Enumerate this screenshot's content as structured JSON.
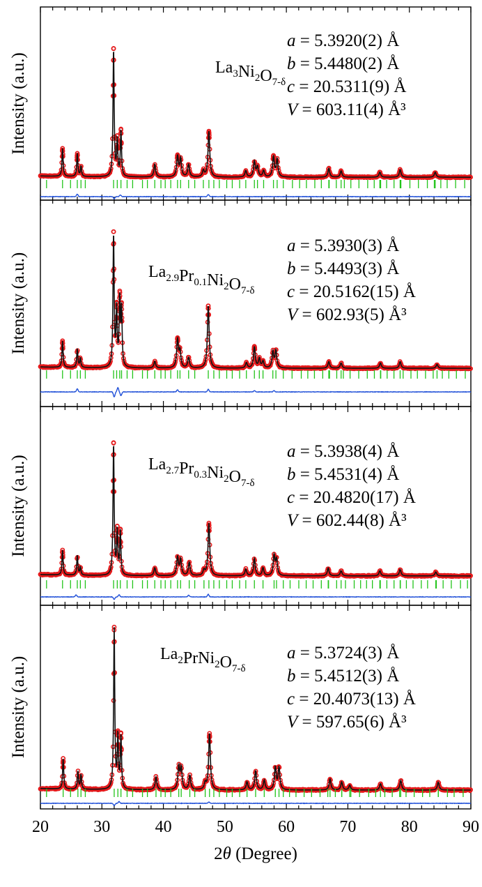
{
  "chart_data": [
    {
      "type": "line",
      "compound": {
        "parts": [
          {
            "t": "La",
            "sub": false
          },
          {
            "t": "3",
            "sub": true
          },
          {
            "t": "Ni",
            "sub": false
          },
          {
            "t": "2",
            "sub": true
          },
          {
            "t": "O",
            "sub": false
          },
          {
            "t": "7-δ",
            "sub": true
          }
        ]
      },
      "ylabel": "Intensity (a.u.)",
      "lattice": [
        {
          "name": "a",
          "value": " = 5.3920(2) Å"
        },
        {
          "name": "b",
          "value": " = 5.4480(2) Å"
        },
        {
          "name": "c",
          "value": " = 20.5311(9) Å"
        },
        {
          "name": "V",
          "value": " = 603.11(4) Å³"
        }
      ],
      "peaks": [
        [
          23.6,
          0.22
        ],
        [
          26.0,
          0.18
        ],
        [
          26.6,
          0.08
        ],
        [
          31.9,
          1.0
        ],
        [
          32.5,
          0.28
        ],
        [
          33.1,
          0.36
        ],
        [
          38.6,
          0.1
        ],
        [
          42.3,
          0.16
        ],
        [
          42.8,
          0.14
        ],
        [
          44.1,
          0.1
        ],
        [
          46.5,
          0.05
        ],
        [
          47.4,
          0.36
        ],
        [
          53.4,
          0.05
        ],
        [
          54.8,
          0.12
        ],
        [
          55.3,
          0.08
        ],
        [
          56.3,
          0.05
        ],
        [
          57.9,
          0.16
        ],
        [
          58.5,
          0.14
        ],
        [
          66.9,
          0.07
        ],
        [
          68.9,
          0.05
        ],
        [
          75.2,
          0.04
        ],
        [
          78.5,
          0.06
        ],
        [
          84.2,
          0.04
        ]
      ],
      "diff_features": [
        [
          26.0,
          0.6
        ],
        [
          32.0,
          -0.5
        ],
        [
          33.0,
          0.4
        ],
        [
          47.3,
          0.5
        ]
      ]
    },
    {
      "type": "line",
      "compound": {
        "parts": [
          {
            "t": "La",
            "sub": false
          },
          {
            "t": "2.9",
            "sub": true
          },
          {
            "t": "Pr",
            "sub": false
          },
          {
            "t": "0.1",
            "sub": true
          },
          {
            "t": "Ni",
            "sub": false
          },
          {
            "t": "2",
            "sub": true
          },
          {
            "t": "O",
            "sub": false
          },
          {
            "t": "7-δ",
            "sub": true
          }
        ]
      },
      "ylabel": "Intensity (a.u.)",
      "lattice": [
        {
          "name": "a",
          "value": " = 5.3930(3) Å"
        },
        {
          "name": "b",
          "value": " = 5.4493(3) Å"
        },
        {
          "name": "c",
          "value": " = 20.5162(15) Å"
        },
        {
          "name": "V",
          "value": " = 602.93(5) Å³"
        }
      ],
      "peaks": [
        [
          23.6,
          0.2
        ],
        [
          26.0,
          0.14
        ],
        [
          26.5,
          0.07
        ],
        [
          31.9,
          1.0
        ],
        [
          32.4,
          0.42
        ],
        [
          32.9,
          0.5
        ],
        [
          33.2,
          0.42
        ],
        [
          38.6,
          0.05
        ],
        [
          42.3,
          0.21
        ],
        [
          42.7,
          0.12
        ],
        [
          44.1,
          0.08
        ],
        [
          47.3,
          0.47
        ],
        [
          53.5,
          0.04
        ],
        [
          54.8,
          0.16
        ],
        [
          55.6,
          0.07
        ],
        [
          56.2,
          0.05
        ],
        [
          57.8,
          0.12
        ],
        [
          58.3,
          0.13
        ],
        [
          66.9,
          0.05
        ],
        [
          68.9,
          0.04
        ],
        [
          75.3,
          0.04
        ],
        [
          78.5,
          0.05
        ],
        [
          84.5,
          0.03
        ]
      ],
      "diff_features": [
        [
          26.0,
          0.7
        ],
        [
          32.0,
          -1.2
        ],
        [
          32.6,
          1.0
        ],
        [
          33.1,
          -0.9
        ],
        [
          42.3,
          0.5
        ],
        [
          47.3,
          0.6
        ],
        [
          54.8,
          0.3
        ],
        [
          58.0,
          0.3
        ]
      ]
    },
    {
      "type": "line",
      "compound": {
        "parts": [
          {
            "t": "La",
            "sub": false
          },
          {
            "t": "2.7",
            "sub": true
          },
          {
            "t": "Pr",
            "sub": false
          },
          {
            "t": "0.3",
            "sub": true
          },
          {
            "t": "Ni",
            "sub": false
          },
          {
            "t": "2",
            "sub": true
          },
          {
            "t": "O",
            "sub": false
          },
          {
            "t": "7-δ",
            "sub": true
          }
        ]
      },
      "ylabel": "Intensity (a.u.)",
      "lattice": [
        {
          "name": "a",
          "value": " = 5.3938(4) Å"
        },
        {
          "name": "b",
          "value": " = 5.4531(4) Å"
        },
        {
          "name": "c",
          "value": " = 20.4820(17) Å"
        },
        {
          "name": "V",
          "value": " = 602.44(8) Å³"
        }
      ],
      "peaks": [
        [
          23.6,
          0.19
        ],
        [
          26.0,
          0.15
        ],
        [
          26.5,
          0.06
        ],
        [
          31.9,
          1.0
        ],
        [
          32.5,
          0.33
        ],
        [
          33.0,
          0.33
        ],
        [
          38.6,
          0.06
        ],
        [
          42.3,
          0.14
        ],
        [
          42.8,
          0.12
        ],
        [
          44.2,
          0.1
        ],
        [
          46.6,
          0.04
        ],
        [
          47.4,
          0.4
        ],
        [
          53.4,
          0.05
        ],
        [
          54.8,
          0.13
        ],
        [
          56.2,
          0.06
        ],
        [
          58.0,
          0.15
        ],
        [
          58.4,
          0.12
        ],
        [
          66.8,
          0.06
        ],
        [
          68.9,
          0.04
        ],
        [
          75.2,
          0.04
        ],
        [
          78.5,
          0.05
        ],
        [
          84.3,
          0.03
        ]
      ],
      "diff_features": [
        [
          25.8,
          0.5
        ],
        [
          32.0,
          -0.6
        ],
        [
          32.8,
          0.5
        ],
        [
          44.1,
          0.4
        ],
        [
          47.3,
          0.6
        ]
      ]
    },
    {
      "type": "line",
      "compound": {
        "parts": [
          {
            "t": "La",
            "sub": false
          },
          {
            "t": "2",
            "sub": true
          },
          {
            "t": "PrNi",
            "sub": false
          },
          {
            "t": "2",
            "sub": true
          },
          {
            "t": "O",
            "sub": false
          },
          {
            "t": "7-δ",
            "sub": true
          }
        ]
      },
      "ylabel": "Intensity (a.u.)",
      "lattice": [
        {
          "name": "a",
          "value": " = 5.3724(3) Å"
        },
        {
          "name": "b",
          "value": " = 5.4512(3) Å"
        },
        {
          "name": "c",
          "value": " = 20.4073(13) Å"
        },
        {
          "name": "V",
          "value": " = 597.65(6) Å³"
        }
      ],
      "peaks": [
        [
          23.7,
          0.19
        ],
        [
          26.1,
          0.11
        ],
        [
          26.6,
          0.09
        ],
        [
          32.0,
          1.0
        ],
        [
          32.6,
          0.32
        ],
        [
          33.1,
          0.33
        ],
        [
          38.8,
          0.08
        ],
        [
          42.5,
          0.14
        ],
        [
          42.9,
          0.13
        ],
        [
          44.3,
          0.09
        ],
        [
          46.8,
          0.04
        ],
        [
          47.5,
          0.35
        ],
        [
          53.6,
          0.05
        ],
        [
          55.0,
          0.12
        ],
        [
          56.4,
          0.06
        ],
        [
          58.2,
          0.14
        ],
        [
          58.8,
          0.14
        ],
        [
          67.1,
          0.07
        ],
        [
          69.0,
          0.05
        ],
        [
          70.3,
          0.03
        ],
        [
          75.3,
          0.04
        ],
        [
          78.6,
          0.06
        ],
        [
          84.7,
          0.05
        ]
      ],
      "diff_features": [
        [
          32.0,
          -0.5
        ],
        [
          32.8,
          0.4
        ],
        [
          47.4,
          0.3
        ]
      ]
    }
  ],
  "xaxis": {
    "label_prefix": "2",
    "label_symbol": "θ",
    "label_suffix": " (Degree)",
    "xlim": [
      20,
      90
    ],
    "ticks": [
      "20",
      "30",
      "40",
      "50",
      "60",
      "70",
      "80",
      "90"
    ]
  },
  "colors": {
    "observed": "#e41a1c",
    "calculated": "#111111",
    "bragg": "#22c41a",
    "difference": "#1f4fd8"
  }
}
